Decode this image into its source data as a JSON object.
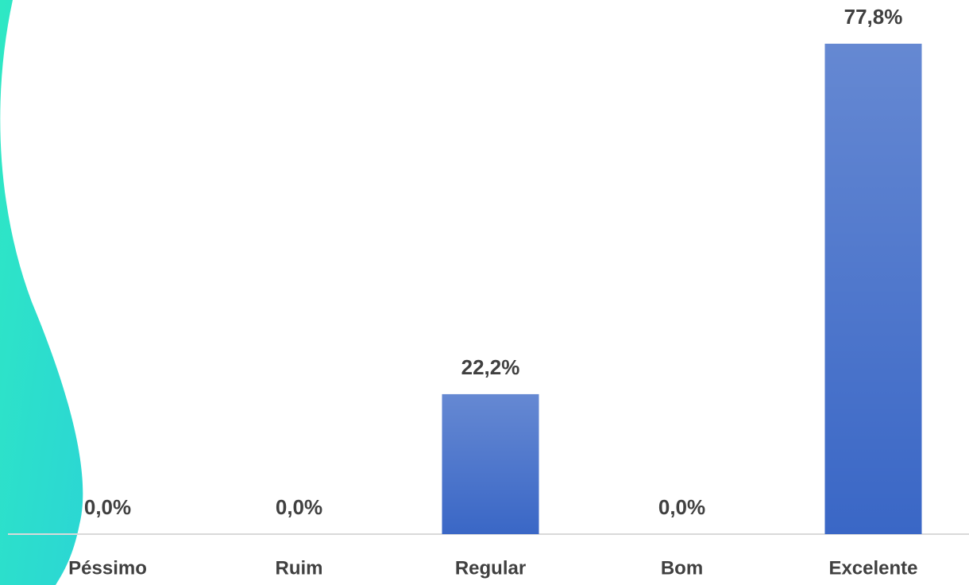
{
  "chart_data": {
    "type": "bar",
    "categories": [
      "Péssimo",
      "Ruim",
      "Regular",
      "Bom",
      "Excelente"
    ],
    "values": [
      0,
      0,
      22.2,
      0,
      77.8
    ],
    "value_labels": [
      "0,0%",
      "0,0%",
      "22,2%",
      "0,0%",
      "77,8%"
    ],
    "color": "#3a67c6",
    "ylim": [
      0,
      77.8
    ]
  }
}
